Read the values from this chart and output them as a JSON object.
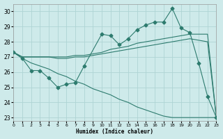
{
  "title": "",
  "xlabel": "Humidex (Indice chaleur)",
  "bg_color": "#ceeaea",
  "line_color": "#2d7b6e",
  "grid_color": "#aed4d4",
  "x_values": [
    0,
    1,
    2,
    3,
    4,
    5,
    6,
    7,
    8,
    9,
    10,
    11,
    12,
    13,
    14,
    15,
    16,
    17,
    18,
    19,
    20,
    21,
    22,
    23
  ],
  "line_main": [
    27.3,
    26.9,
    26.1,
    26.1,
    25.6,
    25.0,
    25.2,
    25.3,
    26.4,
    null,
    28.5,
    28.4,
    27.8,
    28.2,
    28.8,
    29.1,
    29.3,
    29.3,
    30.2,
    28.9,
    28.6,
    26.6,
    24.4,
    23.0
  ],
  "line_upper": [
    27.3,
    27.0,
    27.0,
    27.0,
    27.0,
    27.0,
    27.0,
    27.1,
    27.1,
    27.2,
    27.3,
    27.5,
    27.6,
    27.7,
    27.9,
    28.0,
    28.1,
    28.2,
    28.3,
    28.4,
    28.5,
    28.5,
    28.5,
    23.0
  ],
  "line_lower": [
    27.3,
    27.0,
    27.0,
    27.0,
    27.0,
    26.9,
    26.9,
    27.0,
    27.0,
    27.1,
    27.2,
    27.3,
    27.4,
    27.5,
    27.6,
    27.7,
    27.8,
    27.9,
    28.0,
    28.1,
    28.2,
    28.1,
    28.0,
    23.0
  ],
  "line_bottom": [
    27.3,
    26.9,
    26.6,
    26.4,
    26.2,
    25.9,
    25.7,
    25.4,
    25.2,
    24.9,
    24.7,
    24.5,
    24.2,
    24.0,
    23.7,
    23.5,
    23.3,
    23.1,
    23.0,
    23.0,
    23.0,
    23.0,
    23.0,
    23.0
  ],
  "ylim": [
    22.8,
    30.5
  ],
  "xlim": [
    0,
    23
  ],
  "yticks": [
    23,
    24,
    25,
    26,
    27,
    28,
    29,
    30
  ],
  "xticks": [
    0,
    1,
    2,
    3,
    4,
    5,
    6,
    7,
    8,
    9,
    10,
    11,
    12,
    13,
    14,
    15,
    16,
    17,
    18,
    19,
    20,
    21,
    22,
    23
  ]
}
